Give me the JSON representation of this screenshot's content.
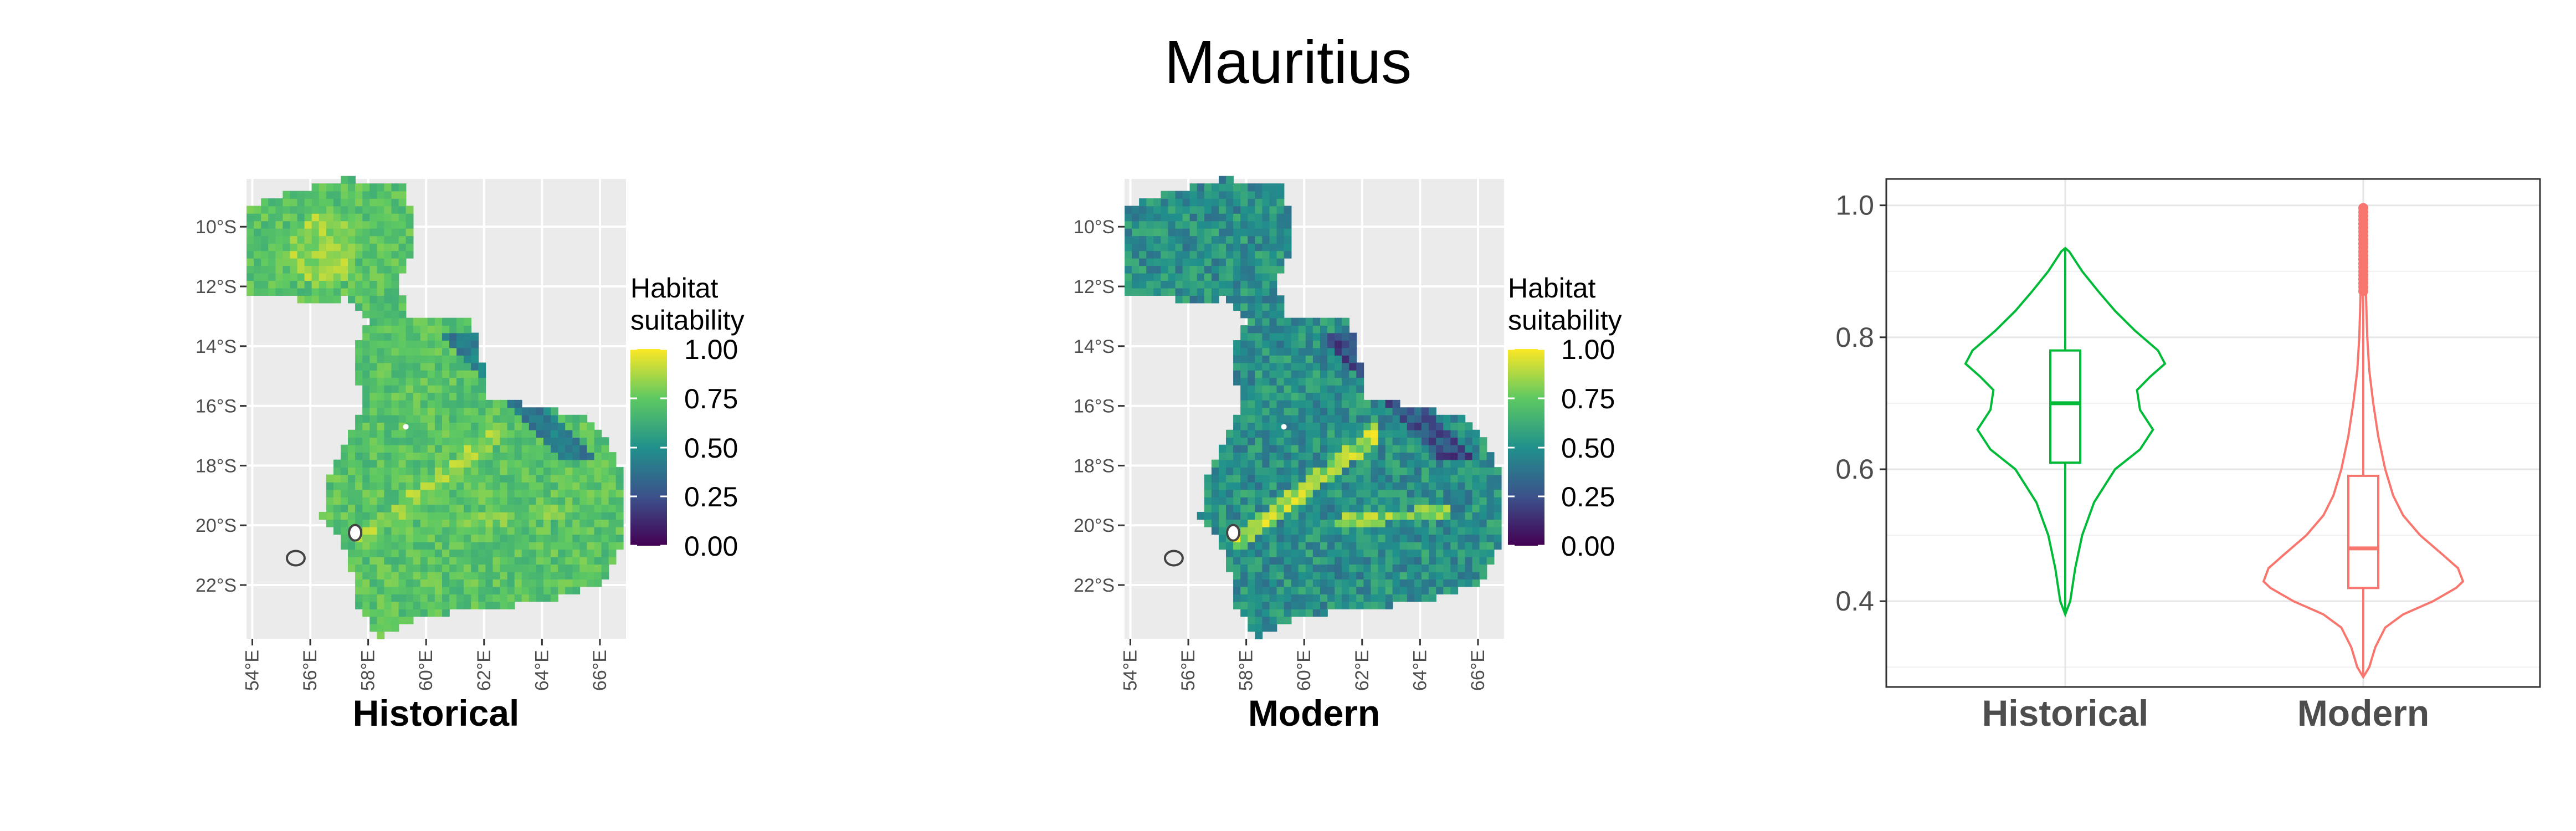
{
  "title": "Mauritius",
  "legend": {
    "title_line1": "Habitat",
    "title_line2": "suitability",
    "ticks": [
      "1.00",
      "0.75",
      "0.50",
      "0.25",
      "0.00"
    ]
  },
  "colors": {
    "panel_bg": "#ebebeb",
    "grid": "#ffffff",
    "historical": "#00ba38",
    "modern": "#f8766d",
    "viridis": [
      "#440154",
      "#3b528b",
      "#21918c",
      "#5ec962",
      "#fde725"
    ]
  },
  "chart_data": [
    {
      "type": "heatmap",
      "xlabel": "Historical",
      "x_ticks": [
        "54°E",
        "56°E",
        "58°E",
        "60°E",
        "62°E",
        "64°E",
        "66°E"
      ],
      "y_ticks": [
        "10°S",
        "12°S",
        "14°S",
        "16°S",
        "18°S",
        "20°S",
        "22°S"
      ],
      "xlim": [
        53.8,
        66.9
      ],
      "ylim": [
        -23.8,
        -8.4
      ],
      "legend_title": "Habitat suitability",
      "value_range": [
        0,
        1
      ],
      "typical_value": 0.72
    },
    {
      "type": "heatmap",
      "xlabel": "Modern",
      "x_ticks": [
        "54°E",
        "56°E",
        "58°E",
        "60°E",
        "62°E",
        "64°E",
        "66°E"
      ],
      "y_ticks": [
        "10°S",
        "12°S",
        "14°S",
        "16°S",
        "18°S",
        "20°S",
        "22°S"
      ],
      "xlim": [
        53.8,
        66.9
      ],
      "ylim": [
        -23.8,
        -8.4
      ],
      "legend_title": "Habitat suitability",
      "value_range": [
        0,
        1
      ],
      "typical_value": 0.5
    },
    {
      "type": "violin",
      "categories": [
        "Historical",
        "Modern"
      ],
      "ylim": [
        0.27,
        1.04
      ],
      "y_ticks": [
        0.4,
        0.6,
        0.8,
        1.0
      ],
      "grid": true,
      "series": [
        {
          "min": 0.38,
          "q1": 0.61,
          "median": 0.7,
          "q3": 0.78,
          "max": 0.935,
          "density": [
            [
              0.38,
              0.0
            ],
            [
              0.4,
              0.05
            ],
            [
              0.45,
              0.1
            ],
            [
              0.5,
              0.17
            ],
            [
              0.55,
              0.29
            ],
            [
              0.6,
              0.5
            ],
            [
              0.63,
              0.75
            ],
            [
              0.66,
              0.88
            ],
            [
              0.69,
              0.75
            ],
            [
              0.72,
              0.72
            ],
            [
              0.74,
              0.85
            ],
            [
              0.76,
              1.0
            ],
            [
              0.78,
              0.93
            ],
            [
              0.81,
              0.7
            ],
            [
              0.84,
              0.5
            ],
            [
              0.87,
              0.33
            ],
            [
              0.9,
              0.17
            ],
            [
              0.93,
              0.04
            ],
            [
              0.935,
              0.0
            ]
          ]
        },
        {
          "min": 0.285,
          "q1": 0.42,
          "median": 0.48,
          "q3": 0.59,
          "max": 0.87,
          "outliers_from": 0.87,
          "outliers_to": 1.0,
          "density": [
            [
              0.285,
              0.0
            ],
            [
              0.3,
              0.06
            ],
            [
              0.33,
              0.12
            ],
            [
              0.36,
              0.22
            ],
            [
              0.38,
              0.4
            ],
            [
              0.4,
              0.7
            ],
            [
              0.42,
              0.93
            ],
            [
              0.43,
              1.0
            ],
            [
              0.45,
              0.95
            ],
            [
              0.47,
              0.8
            ],
            [
              0.5,
              0.57
            ],
            [
              0.53,
              0.4
            ],
            [
              0.56,
              0.3
            ],
            [
              0.6,
              0.22
            ],
            [
              0.65,
              0.15
            ],
            [
              0.7,
              0.1
            ],
            [
              0.75,
              0.06
            ],
            [
              0.8,
              0.04
            ],
            [
              0.85,
              0.03
            ],
            [
              0.9,
              0.02
            ],
            [
              0.95,
              0.015
            ],
            [
              1.0,
              0.01
            ]
          ]
        }
      ]
    }
  ]
}
